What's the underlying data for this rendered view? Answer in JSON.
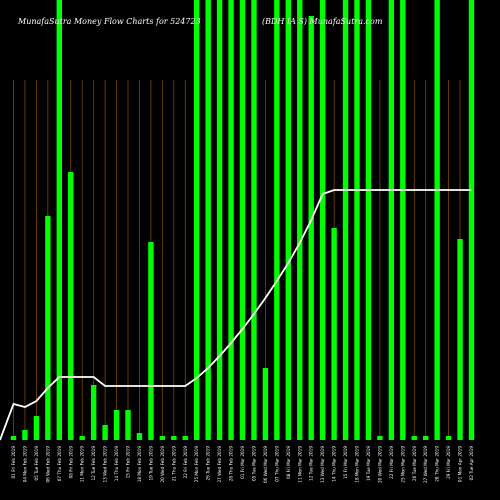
{
  "chart_data": {
    "type": "bar",
    "title_left": "MunafaSutra  Money Flow  Charts for 524723",
    "title_right": "(BDH  IA  S)  MunafaSutra.com",
    "xlabel": "",
    "ylabel": "",
    "ylim": [
      0,
      440
    ],
    "categories": [
      "01 Fri Feb 2019",
      "04 Mon Feb 2019",
      "05 Tue Feb 2019",
      "06 Wed Feb 2019",
      "07 Thu Feb 2019",
      "08 Fri Feb 2019",
      "11 Mon Feb 2019",
      "12 Tue Feb 2019",
      "13 Wed Feb 2019",
      "14 Thu Feb 2019",
      "15 Fri Feb 2019",
      "18 Mon Feb 2019",
      "19 Tue Feb 2019",
      "20 Wed Feb 2019",
      "21 Thu Feb 2019",
      "22 Fri Feb 2019",
      "25 Mon Feb 2019",
      "26 Tue Feb 2019",
      "27 Wed Feb 2019",
      "28 Thu Feb 2019",
      "01 Fri Mar 2019",
      "05 Tue Mar 2019",
      "06 Wed Mar 2019",
      "07 Thu Mar 2019",
      "08 Fri Mar 2019",
      "11 Mon Mar 2019",
      "12 Tue Mar 2019",
      "13 Wed Mar 2019",
      "14 Thu Mar 2019",
      "15 Fri Mar 2019",
      "18 Mon Mar 2019",
      "19 Tue Mar 2019",
      "20 Wed Mar 2019",
      "22 Fri Mar 2019",
      "25 Mon Mar 2019",
      "26 Tue Mar 2019",
      "27 Wed Mar 2019",
      "28 Thu Mar 2019",
      "29 Fri Mar 2019",
      "01 Mon Apr 2019",
      "02 Tue Apr 2019"
    ],
    "series": [
      {
        "type": "bar",
        "color": "#00ff00",
        "values": [
          4,
          10,
          24,
          224,
          440,
          268,
          4,
          55,
          15,
          30,
          30,
          7,
          198,
          4,
          4,
          4,
          440,
          440,
          440,
          440,
          440,
          440,
          72,
          440,
          440,
          440,
          424,
          440,
          212,
          440,
          440,
          440,
          4,
          440,
          440,
          4,
          4,
          440,
          4,
          201,
          440
        ]
      },
      {
        "type": "line",
        "color": "#ffffff",
        "values": [
          36,
          33,
          39,
          52,
          63,
          63,
          63,
          63,
          54,
          54,
          54,
          54,
          54,
          54,
          54,
          54,
          62,
          72,
          84,
          97,
          111,
          126,
          142,
          159,
          177,
          197,
          220,
          246,
          250,
          250,
          250,
          250,
          250,
          250,
          250,
          250,
          250,
          250,
          250,
          250,
          250
        ]
      }
    ],
    "vertical_grid": true
  }
}
